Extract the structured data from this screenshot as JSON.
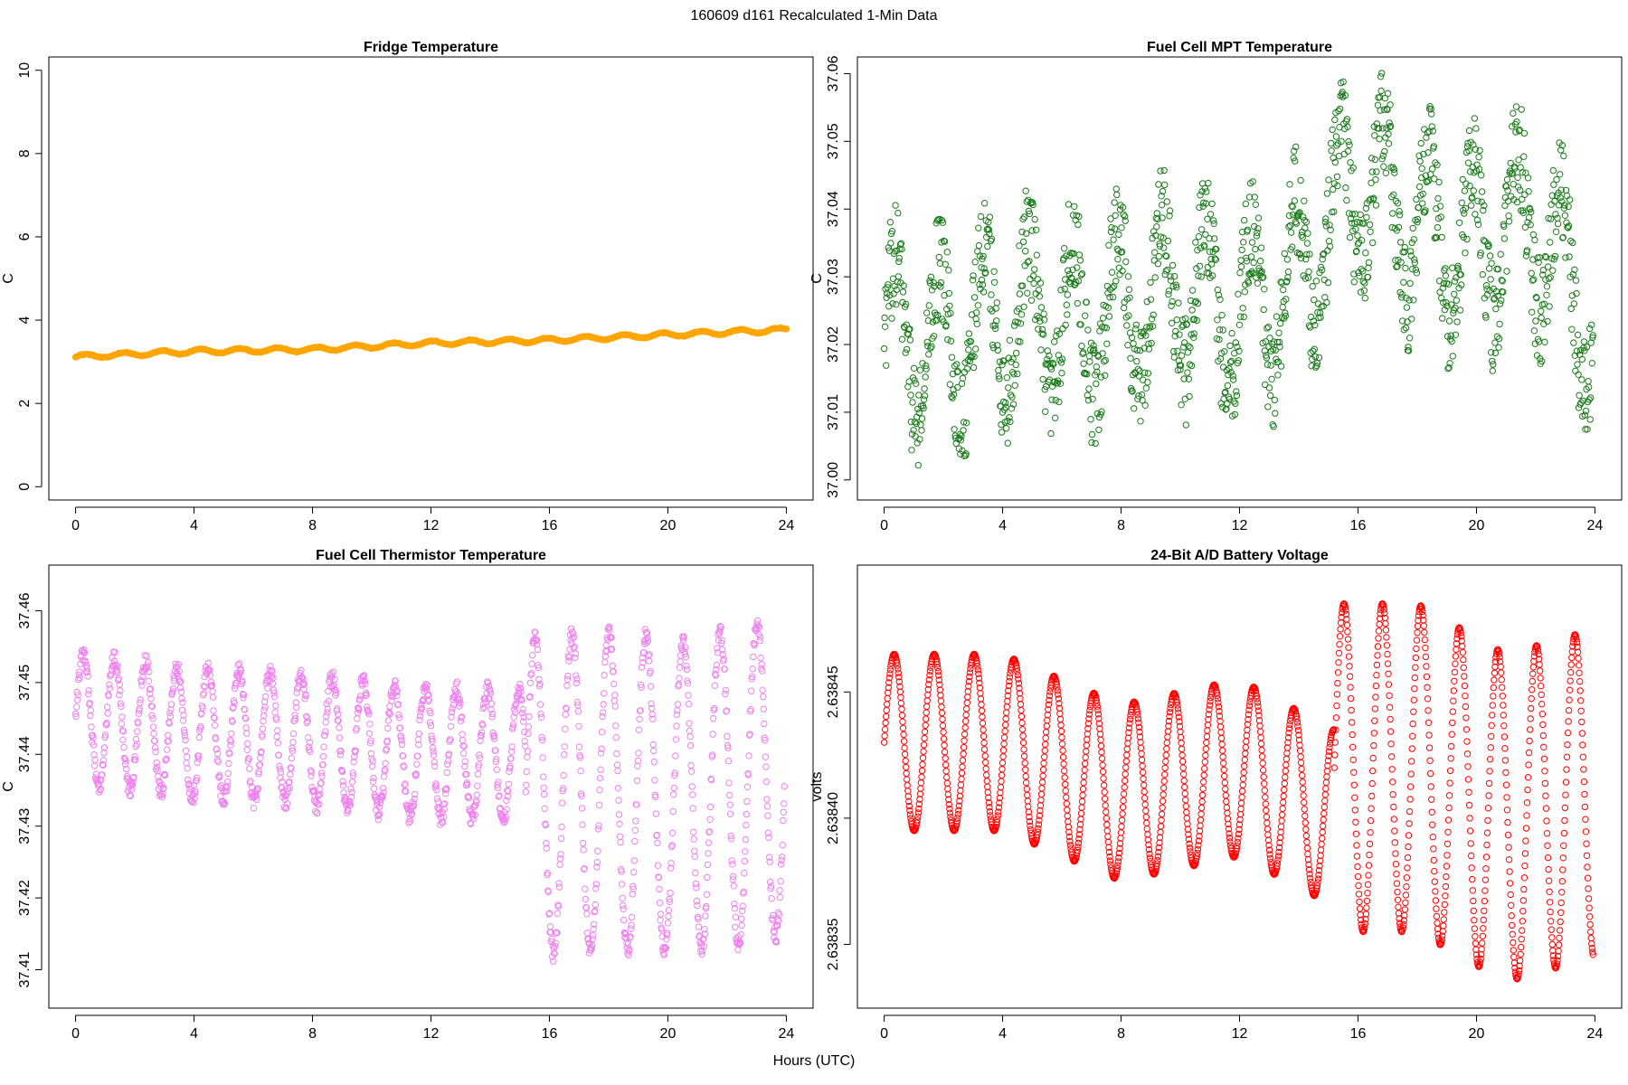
{
  "figure": {
    "title": "160609    d161    Recalculated 1-Min Data",
    "xlabel": "Hours (UTC)"
  },
  "chart_data": [
    {
      "type": "scatter",
      "title": "Fridge Temperature",
      "ylabel": "C",
      "color": "#ffa500",
      "marker": "filled",
      "xlim": [
        0,
        24
      ],
      "ylim": [
        0,
        10
      ],
      "xticks": [
        0,
        4,
        8,
        12,
        16,
        20,
        24
      ],
      "yticks": [
        0,
        2,
        4,
        6,
        8,
        10
      ],
      "ytick_labels": [
        "0",
        "2",
        "4",
        "6",
        "8",
        "10"
      ],
      "series_model": {
        "kind": "trend",
        "step": 0.05,
        "x_end": 24,
        "points": [
          [
            0,
            3.12
          ],
          [
            4,
            3.25
          ],
          [
            8,
            3.3
          ],
          [
            12,
            3.45
          ],
          [
            16,
            3.52
          ],
          [
            20,
            3.65
          ],
          [
            24,
            3.77
          ]
        ],
        "wiggle": 0.05,
        "period": 1.3,
        "noise": 0.01
      }
    },
    {
      "type": "scatter",
      "title": "Fuel Cell MPT Temperature",
      "ylabel": "C",
      "color": "#1a7a1a",
      "marker": "open",
      "xlim": [
        0,
        24
      ],
      "ylim": [
        36.999,
        37.0605
      ],
      "xticks": [
        0,
        4,
        8,
        12,
        16,
        20,
        24
      ],
      "yticks": [
        37.0,
        37.01,
        37.02,
        37.03,
        37.04,
        37.05,
        37.06
      ],
      "ytick_labels": [
        "37.00",
        "37.01",
        "37.02",
        "37.03",
        "37.04",
        "37.05",
        "37.06"
      ],
      "series_model": {
        "kind": "trend",
        "step": 0.016,
        "x_end": 23.95,
        "points": [
          [
            0,
            37.021
          ],
          [
            2,
            37.02
          ],
          [
            4,
            37.024
          ],
          [
            6,
            37.023
          ],
          [
            8,
            37.025
          ],
          [
            10,
            37.028
          ],
          [
            12,
            37.024
          ],
          [
            14,
            37.03
          ],
          [
            16,
            37.044
          ],
          [
            18,
            37.037
          ],
          [
            20,
            37.034
          ],
          [
            22,
            37.038
          ],
          [
            24,
            37.022
          ]
        ],
        "wiggle": 0.012,
        "period": 1.5,
        "noise": 0.008
      }
    },
    {
      "type": "scatter",
      "title": "Fuel Cell Thermistor Temperature",
      "ylabel": "C",
      "color": "#ee82ee",
      "marker": "open",
      "xlim": [
        0,
        24
      ],
      "ylim": [
        37.4065,
        37.4645
      ],
      "xticks": [
        0,
        4,
        8,
        12,
        16,
        20,
        24
      ],
      "yticks": [
        37.41,
        37.42,
        37.43,
        37.44,
        37.45,
        37.46
      ],
      "ytick_labels": [
        "37.41",
        "37.42",
        "37.43",
        "37.44",
        "37.45",
        "37.46"
      ],
      "series_model": {
        "kind": "segments",
        "step": 0.016,
        "x_end": 23.95,
        "noise": 0.0012,
        "segments": [
          {
            "x0": 0,
            "x1": 15.2,
            "points": [
              [
                0,
                37.445
              ],
              [
                4,
                37.443
              ],
              [
                8,
                37.442
              ],
              [
                12,
                37.44
              ],
              [
                15.2,
                37.44
              ]
            ],
            "amp": 0.009,
            "period": 1.05
          },
          {
            "x0": 15.2,
            "x1": 24,
            "points": [
              [
                15.2,
                37.434
              ],
              [
                18,
                37.435
              ],
              [
                20.5,
                37.434
              ],
              [
                24,
                37.437
              ]
            ],
            "amp": 0.022,
            "period": 1.25
          }
        ]
      }
    },
    {
      "type": "scatter",
      "title": "24-Bit A/D Battery Voltage",
      "ylabel": "volts",
      "color": "#ff0000",
      "marker": "open",
      "xlim": [
        0,
        24
      ],
      "ylim": [
        2.63833,
        2.638495
      ],
      "xticks": [
        0,
        4,
        8,
        12,
        16,
        20,
        24
      ],
      "yticks": [
        2.63835,
        2.6384,
        2.63845
      ],
      "ytick_labels": [
        "2.63835",
        "2.63840",
        "2.63845"
      ],
      "series_model": {
        "kind": "segments",
        "step": 0.016,
        "x_end": 23.95,
        "noise": 0,
        "segments": [
          {
            "x0": 0,
            "x1": 15.2,
            "points": [
              [
                0,
                2.63843
              ],
              [
                4,
                2.63843
              ],
              [
                8,
                2.63841
              ],
              [
                12,
                2.63842
              ],
              [
                15.2,
                2.6384
              ]
            ],
            "amp": 3.5e-05,
            "period": 1.35
          },
          {
            "x0": 15.2,
            "x1": 24,
            "points": [
              [
                15.2,
                2.63842
              ],
              [
                18,
                2.63842
              ],
              [
                21,
                2.6384
              ],
              [
                24,
                2.63841
              ]
            ],
            "amp": 6.5e-05,
            "period": 1.3
          }
        ]
      }
    }
  ]
}
